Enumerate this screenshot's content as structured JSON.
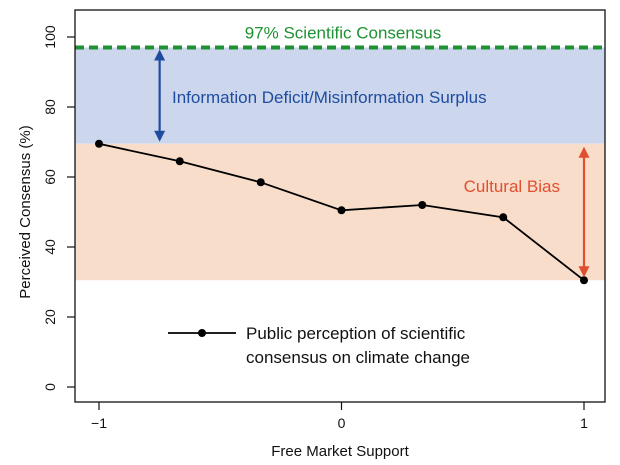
{
  "chart_data": {
    "type": "line",
    "xlabel": "Free Market Support",
    "ylabel": "Perceived Consensus (%)",
    "xlim": [
      -1.0,
      1.0
    ],
    "ylim": [
      0,
      100
    ],
    "xticks": [
      -1,
      0,
      1
    ],
    "xtick_labels": [
      "−1",
      "0",
      "1"
    ],
    "yticks": [
      0,
      20,
      40,
      60,
      80,
      100
    ],
    "ytick_labels": [
      "0",
      "20",
      "40",
      "60",
      "80",
      "100"
    ],
    "grid": false,
    "legend_placement": "bottom-center",
    "series": [
      {
        "name": "Public perception of scientific consensus on climate change",
        "x": [
          -1.0,
          -0.667,
          -0.333,
          0.0,
          0.333,
          0.667,
          1.0
        ],
        "y": [
          69.5,
          64.5,
          58.5,
          50.5,
          52.0,
          48.5,
          30.5
        ],
        "color": "#000000"
      }
    ],
    "legend_lines": [
      "Public perception of scientific",
      "consensus on climate change"
    ],
    "reference_line": {
      "label": "97% Scientific Consensus",
      "y": 97,
      "color": "#1e9132",
      "style": "dashed"
    },
    "bands": [
      {
        "name": "information-deficit-band",
        "y_from": 69.5,
        "y_to": 97,
        "color": "#ccd7ed"
      },
      {
        "name": "cultural-bias-band",
        "y_from": 30.5,
        "y_to": 69.5,
        "color": "#f9ddcb"
      }
    ],
    "annotations": [
      {
        "name": "information-deficit",
        "text": "Information Deficit/Misinformation Surplus",
        "color": "#1f4c9e",
        "arrow_x": -0.75,
        "y_from": 69.5,
        "y_to": 97
      },
      {
        "name": "cultural-bias",
        "text": "Cultural Bias",
        "color": "#e14f2f",
        "arrow_x": 1.0,
        "y_from": 30.5,
        "y_to": 69.5
      }
    ]
  }
}
